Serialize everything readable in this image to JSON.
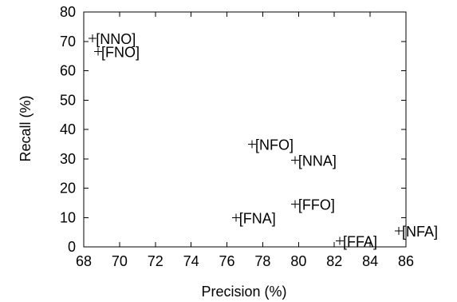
{
  "chart_data": {
    "type": "scatter",
    "title": "",
    "xlabel": "Precision (%)",
    "ylabel": "Recall (%)",
    "xlim": [
      68,
      86
    ],
    "ylim": [
      0,
      80
    ],
    "grid": false,
    "legend": "none",
    "x_ticks": [
      "68",
      "70",
      "72",
      "74",
      "76",
      "78",
      "80",
      "82",
      "84",
      "86"
    ],
    "y_ticks": [
      "0",
      "10",
      "20",
      "30",
      "40",
      "50",
      "60",
      "70",
      "80"
    ],
    "points": [
      {
        "label": "[NNO]",
        "x": 68.5,
        "y": 71.0
      },
      {
        "label": "[FNO]",
        "x": 68.8,
        "y": 66.5
      },
      {
        "label": "[NFO]",
        "x": 77.4,
        "y": 35.0
      },
      {
        "label": "[NNA]",
        "x": 79.8,
        "y": 29.5
      },
      {
        "label": "[FFO]",
        "x": 79.8,
        "y": 14.5
      },
      {
        "label": "[FNA]",
        "x": 76.5,
        "y": 10.0
      },
      {
        "label": "[NFA]",
        "x": 85.6,
        "y": 5.5
      },
      {
        "label": "[FFA]",
        "x": 82.3,
        "y": 2.0
      }
    ]
  }
}
